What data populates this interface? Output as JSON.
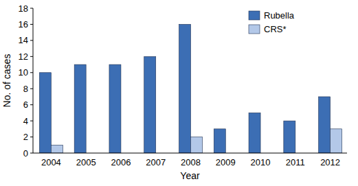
{
  "chart_data": {
    "type": "bar",
    "x_label": "Year",
    "y_label": "No. of cases",
    "categories": [
      "2004",
      "2005",
      "2006",
      "2007",
      "2008",
      "2009",
      "2010",
      "2011",
      "2012"
    ],
    "series": [
      {
        "name": "Rubella",
        "color": "#3c6eb4",
        "values": [
          10,
          11,
          11,
          12,
          16,
          3,
          5,
          4,
          7
        ]
      },
      {
        "name": "CRS*",
        "color": "#b3c8e8",
        "values": [
          1,
          0,
          0,
          0,
          2,
          0,
          0,
          0,
          3
        ]
      }
    ],
    "ylim": [
      0,
      18
    ],
    "yticks": [
      0,
      2,
      4,
      6,
      8,
      10,
      12,
      14,
      16,
      18
    ],
    "grid": false,
    "legend": "top right"
  }
}
